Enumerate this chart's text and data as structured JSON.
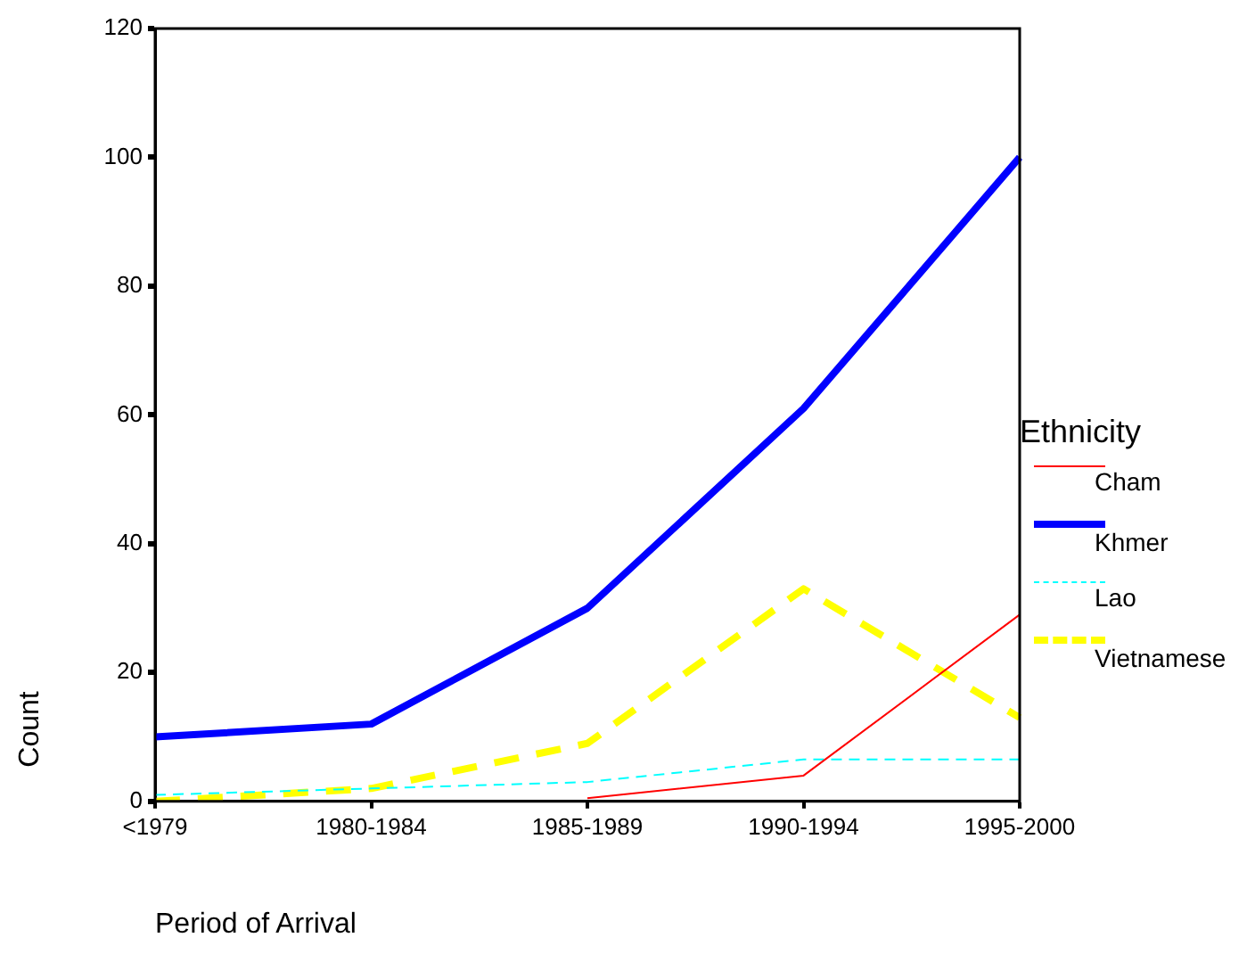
{
  "chart_data": {
    "type": "line",
    "xlabel": "Period of Arrival",
    "ylabel": "Count",
    "legend_title": "Ethnicity",
    "legend": "right",
    "categories": [
      "<1979",
      "1980-1984",
      "1985-1989",
      "1990-1994",
      "1995-2000"
    ],
    "ylim": [
      0,
      120
    ],
    "yticks": [
      0,
      20,
      40,
      60,
      80,
      100,
      120
    ],
    "grid": false,
    "marker": "none",
    "series": [
      {
        "name": "Cham",
        "color": "#ff0000",
        "line_style": "solid",
        "values": [
          null,
          null,
          0.5,
          4,
          29
        ]
      },
      {
        "name": "Khmer",
        "color": "#0000ff",
        "line_style": "solid",
        "values": [
          10,
          12,
          30,
          61,
          100
        ]
      },
      {
        "name": "Lao",
        "color": "#00ffff",
        "line_style": "dashed",
        "values": [
          1,
          2,
          3,
          6.5,
          6.5
        ]
      },
      {
        "name": "Vietnamese",
        "color": "#ffff00",
        "line_style": "dashed",
        "values": [
          0,
          2,
          9,
          33,
          13
        ]
      }
    ]
  }
}
